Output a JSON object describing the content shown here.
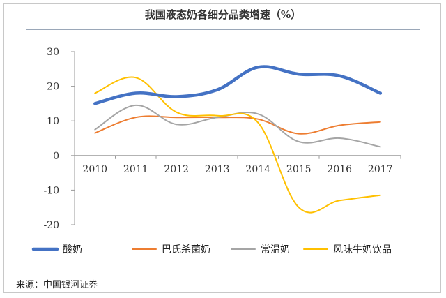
{
  "title": "我国液态奶各细分品类增速（%）",
  "source": "来源：中国银河证券",
  "chart_data": {
    "type": "line",
    "title": "我国液态奶各细分品类增速（%）",
    "x": [
      "2010",
      "2011",
      "2012",
      "2013",
      "2014",
      "2015",
      "2016",
      "2017"
    ],
    "ylim": [
      -20,
      30
    ],
    "yticks": [
      -20,
      -10,
      0,
      10,
      20,
      30
    ],
    "grid": false,
    "legend": "bottom",
    "series": [
      {
        "name": "酸奶",
        "color": "#4472c4",
        "width": 4.5,
        "values": [
          15,
          18,
          17,
          19,
          25.5,
          23.5,
          23,
          18
        ]
      },
      {
        "name": "巴氏杀菌奶",
        "color": "#ed7d31",
        "width": 2,
        "values": [
          6.5,
          11,
          11,
          11,
          10.5,
          6.3,
          8.7,
          9.7
        ]
      },
      {
        "name": "常温奶",
        "color": "#a5a5a5",
        "width": 2,
        "values": [
          7.5,
          14.5,
          9,
          11,
          12,
          4,
          5,
          2.5
        ]
      },
      {
        "name": "风味牛奶饮品",
        "color": "#ffc000",
        "width": 2,
        "values": [
          18,
          22.5,
          12.5,
          11.5,
          9.5,
          -15,
          -13,
          -11.5
        ]
      }
    ]
  }
}
